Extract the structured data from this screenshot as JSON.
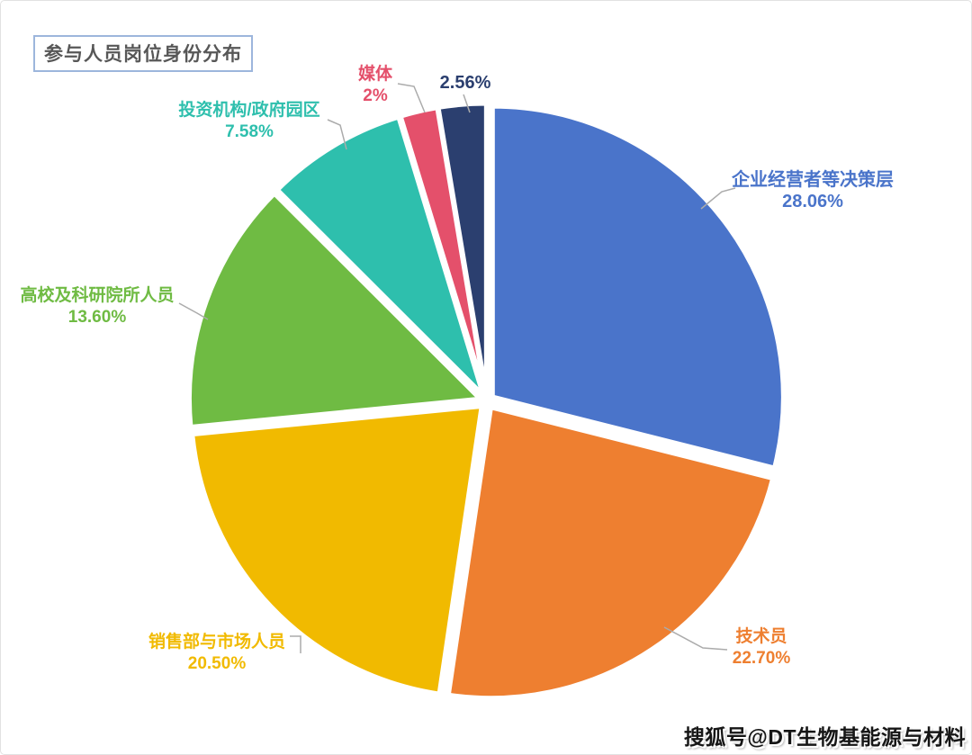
{
  "title": "参与人员岗位身份分布",
  "watermark": "搜狐号@DT生物基能源与材料",
  "chart_data": {
    "type": "pie",
    "title": "参与人员岗位身份分布",
    "unit": "%",
    "start_angle_deg": 0,
    "direction": "clockwise",
    "legend_position": "none",
    "labels_outside": true,
    "slices": [
      {
        "label": "企业经营者等决策层",
        "value": 28.06,
        "pct_label": "28.06%",
        "color": "#4A74CA"
      },
      {
        "label": "技术员",
        "value": 22.7,
        "pct_label": "22.70%",
        "color": "#EE7F30"
      },
      {
        "label": "销售部与市场人员",
        "value": 20.5,
        "pct_label": "20.50%",
        "color": "#F1BA00"
      },
      {
        "label": "高校及科研院所人员",
        "value": 13.6,
        "pct_label": "13.60%",
        "color": "#6FBB43"
      },
      {
        "label": "投资机构/政府园区",
        "value": 7.58,
        "pct_label": "7.58%",
        "color": "#2EBFAD"
      },
      {
        "label": "媒体",
        "value": 2.0,
        "pct_label": "2%",
        "color": "#E4506B"
      },
      {
        "label": "",
        "value": 2.56,
        "pct_label": "2.56%",
        "color": "#2B3F6F"
      }
    ]
  }
}
